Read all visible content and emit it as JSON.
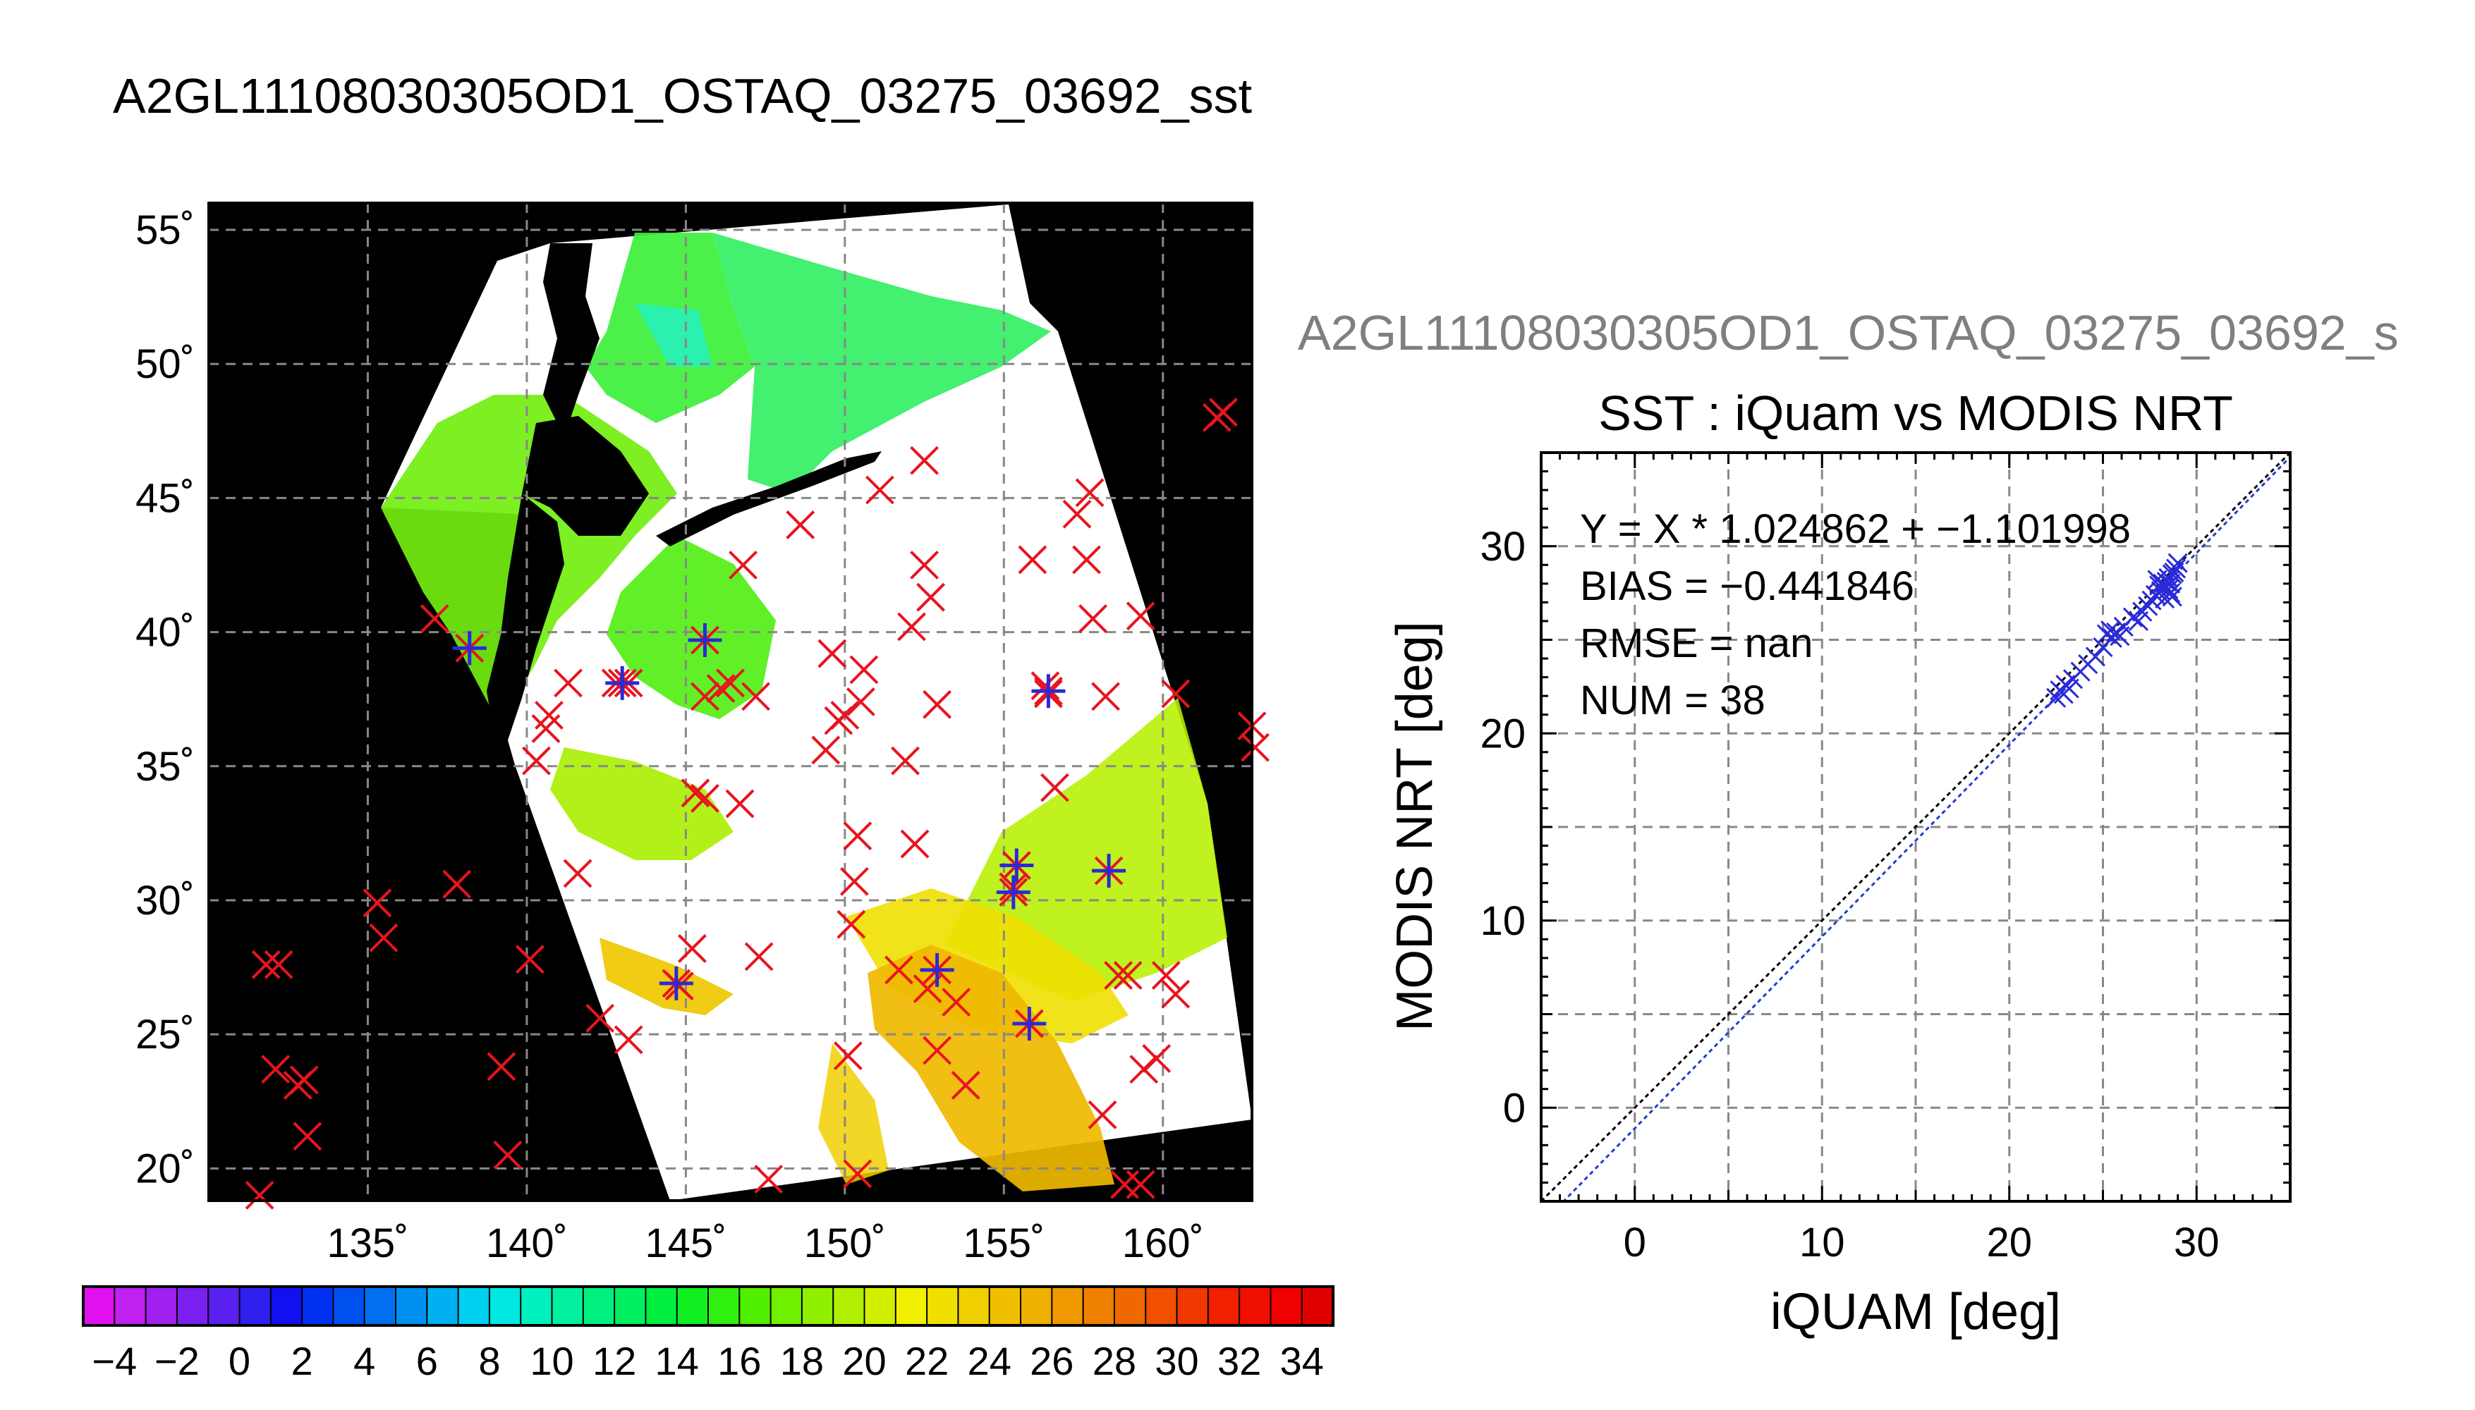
{
  "page": {
    "main_title": "A2GL11108030305OD1_OSTAQ_03275_03692_sst",
    "secondary_title": "A2GL11108030305OD1_OSTAQ_03275_03692_s"
  },
  "colors": {
    "land": "#000000",
    "grid": "#888888",
    "in_situ_marker": "#e8141e",
    "matchup_marker": "#2a2ad8",
    "fit_line": "#1f3fd0",
    "one_to_one_line": "#000000",
    "secondary_title": "#7f7f7f"
  },
  "chart_data": [
    {
      "type": "map",
      "lon_ticks": [
        135,
        140,
        145,
        150,
        155,
        160
      ],
      "lon_tick_labels": [
        "135˚",
        "140˚",
        "145˚",
        "150˚",
        "155˚",
        "160˚"
      ],
      "lat_ticks": [
        20,
        25,
        30,
        35,
        40,
        45,
        50,
        55
      ],
      "lat_tick_labels": [
        "20˚",
        "25˚",
        "30˚",
        "35˚",
        "40˚",
        "45˚",
        "50˚",
        "55˚"
      ],
      "lon_range": [
        130.0,
        162.8
      ],
      "lat_range": [
        18.8,
        56.0
      ],
      "grid": true,
      "colorbar": {
        "min": -5,
        "max": 35,
        "step": 1,
        "tick_values": [
          -4,
          -2,
          0,
          2,
          4,
          6,
          8,
          10,
          12,
          14,
          16,
          18,
          20,
          22,
          24,
          26,
          28,
          30,
          32,
          34
        ],
        "tick_labels": [
          "−4",
          "−2",
          "0",
          "2",
          "4",
          "6",
          "8",
          "10",
          "12",
          "14",
          "16",
          "18",
          "20",
          "22",
          "24",
          "26",
          "28",
          "30",
          "32",
          "34"
        ],
        "colors": [
          "#e010f0",
          "#c020f0",
          "#a020f0",
          "#7a20f0",
          "#5a20f0",
          "#3020f0",
          "#1010f0",
          "#0030f0",
          "#0050f0",
          "#0070f0",
          "#0090f0",
          "#00b0f0",
          "#00d0f0",
          "#00e8e0",
          "#00f0c0",
          "#00f0a0",
          "#00f080",
          "#00f060",
          "#00f040",
          "#10f020",
          "#30f010",
          "#50f000",
          "#70f000",
          "#90f000",
          "#b0f000",
          "#d0f000",
          "#f0f000",
          "#f0e000",
          "#f0d000",
          "#f0c000",
          "#f0b000",
          "#f09800",
          "#f08000",
          "#f06800",
          "#f05000",
          "#f03800",
          "#f02000",
          "#f01000",
          "#f00000",
          "#e00000"
        ]
      },
      "in_situ_points": [
        [
          131.8,
          27.6
        ],
        [
          132.2,
          27.6
        ],
        [
          131.6,
          19.0
        ],
        [
          132.1,
          23.7
        ],
        [
          132.8,
          23.1
        ],
        [
          133.0,
          23.3
        ],
        [
          133.1,
          21.2
        ],
        [
          135.3,
          29.9
        ],
        [
          135.5,
          28.6
        ],
        [
          137.8,
          30.6
        ],
        [
          137.1,
          40.5
        ],
        [
          139.2,
          23.8
        ],
        [
          139.4,
          20.5
        ],
        [
          140.1,
          27.8
        ],
        [
          140.3,
          35.2
        ],
        [
          140.6,
          36.4
        ],
        [
          140.7,
          36.9
        ],
        [
          141.3,
          38.1
        ],
        [
          141.6,
          31.0
        ],
        [
          142.3,
          25.6
        ],
        [
          142.8,
          38.1
        ],
        [
          143.2,
          38.1
        ],
        [
          143.2,
          24.8
        ],
        [
          144.8,
          26.8
        ],
        [
          145.2,
          28.2
        ],
        [
          145.3,
          34.0
        ],
        [
          145.6,
          33.8
        ],
        [
          145.6,
          37.6
        ],
        [
          146.1,
          37.9
        ],
        [
          146.4,
          38.1
        ],
        [
          146.7,
          33.6
        ],
        [
          146.8,
          42.5
        ],
        [
          147.2,
          37.6
        ],
        [
          147.3,
          27.9
        ],
        [
          147.6,
          19.6
        ],
        [
          148.6,
          44.0
        ],
        [
          149.4,
          35.6
        ],
        [
          149.6,
          39.2
        ],
        [
          149.8,
          36.7
        ],
        [
          150.0,
          36.9
        ],
        [
          150.2,
          29.1
        ],
        [
          150.3,
          30.7
        ],
        [
          150.1,
          24.2
        ],
        [
          150.5,
          37.4
        ],
        [
          150.4,
          32.4
        ],
        [
          150.4,
          19.8
        ],
        [
          150.6,
          38.6
        ],
        [
          151.1,
          45.3
        ],
        [
          151.7,
          27.4
        ],
        [
          151.9,
          35.2
        ],
        [
          152.2,
          32.1
        ],
        [
          152.1,
          40.2
        ],
        [
          152.5,
          42.5
        ],
        [
          152.5,
          46.4
        ],
        [
          152.7,
          41.3
        ],
        [
          152.9,
          37.3
        ],
        [
          152.6,
          26.7
        ],
        [
          152.9,
          24.4
        ],
        [
          153.5,
          26.2
        ],
        [
          153.8,
          23.1
        ],
        [
          155.3,
          30.5
        ],
        [
          155.9,
          42.7
        ],
        [
          156.3,
          38.0
        ],
        [
          156.4,
          37.7
        ],
        [
          156.6,
          34.2
        ],
        [
          157.3,
          44.4
        ],
        [
          157.6,
          42.7
        ],
        [
          157.7,
          45.2
        ],
        [
          157.8,
          40.5
        ],
        [
          158.1,
          22.0
        ],
        [
          158.2,
          37.6
        ],
        [
          158.6,
          27.2
        ],
        [
          158.8,
          19.4
        ],
        [
          158.9,
          27.2
        ],
        [
          159.3,
          19.4
        ],
        [
          159.3,
          40.6
        ],
        [
          159.4,
          23.7
        ],
        [
          159.8,
          24.1
        ],
        [
          160.1,
          27.2
        ],
        [
          160.4,
          37.7
        ],
        [
          160.4,
          26.5
        ],
        [
          161.7,
          48.0
        ],
        [
          161.9,
          48.2
        ],
        [
          162.8,
          36.5
        ],
        [
          162.9,
          35.7
        ]
      ],
      "matchup_points": [
        [
          138.2,
          39.4
        ],
        [
          143.0,
          38.1
        ],
        [
          144.7,
          26.9
        ],
        [
          145.6,
          39.7
        ],
        [
          152.9,
          27.4
        ],
        [
          155.4,
          31.3
        ],
        [
          155.3,
          30.3
        ],
        [
          155.8,
          25.4
        ],
        [
          156.4,
          37.8
        ],
        [
          158.3,
          31.1
        ]
      ]
    },
    {
      "type": "scatter",
      "title": "SST : iQuam vs MODIS NRT",
      "xlabel": "iQUAM [deg]",
      "ylabel": "MODIS NRT [deg]",
      "xlim": [
        -5,
        35
      ],
      "ylim": [
        -5,
        35
      ],
      "x_ticks": [
        0,
        10,
        20,
        30
      ],
      "y_ticks": [
        0,
        10,
        20,
        30
      ],
      "grid": true,
      "annotations": [
        "Y = X * 1.024862 + −1.101998",
        "BIAS = −0.441846",
        "RMSE = nan",
        "NUM = 38"
      ],
      "fit": {
        "slope": 1.024862,
        "intercept": -1.101998
      },
      "series": [
        {
          "x": [
            22.5,
            22.7,
            22.9,
            23.0,
            23.2,
            23.4,
            23.8,
            24.2,
            24.6,
            25.0,
            25.2,
            25.4,
            25.5,
            25.7,
            25.9,
            26.1,
            26.6,
            26.9,
            27.1,
            27.4,
            27.6,
            27.8,
            28.0,
            28.1,
            28.2,
            28.3,
            28.4,
            28.5,
            28.5,
            28.6,
            28.7,
            28.8,
            28.9,
            29.0,
            28.3,
            28.7,
            27.9,
            28.6
          ],
          "y": [
            21.9,
            22.3,
            22.1,
            22.6,
            22.4,
            22.9,
            23.3,
            23.7,
            24.1,
            24.6,
            25.3,
            25.5,
            25.1,
            25.4,
            25.2,
            25.7,
            26.2,
            26.0,
            26.5,
            26.8,
            27.1,
            27.4,
            27.9,
            27.6,
            28.0,
            27.8,
            28.1,
            27.7,
            28.3,
            27.5,
            28.5,
            28.6,
            28.8,
            29.1,
            27.2,
            27.3,
            28.2,
            28.0
          ]
        }
      ]
    }
  ]
}
